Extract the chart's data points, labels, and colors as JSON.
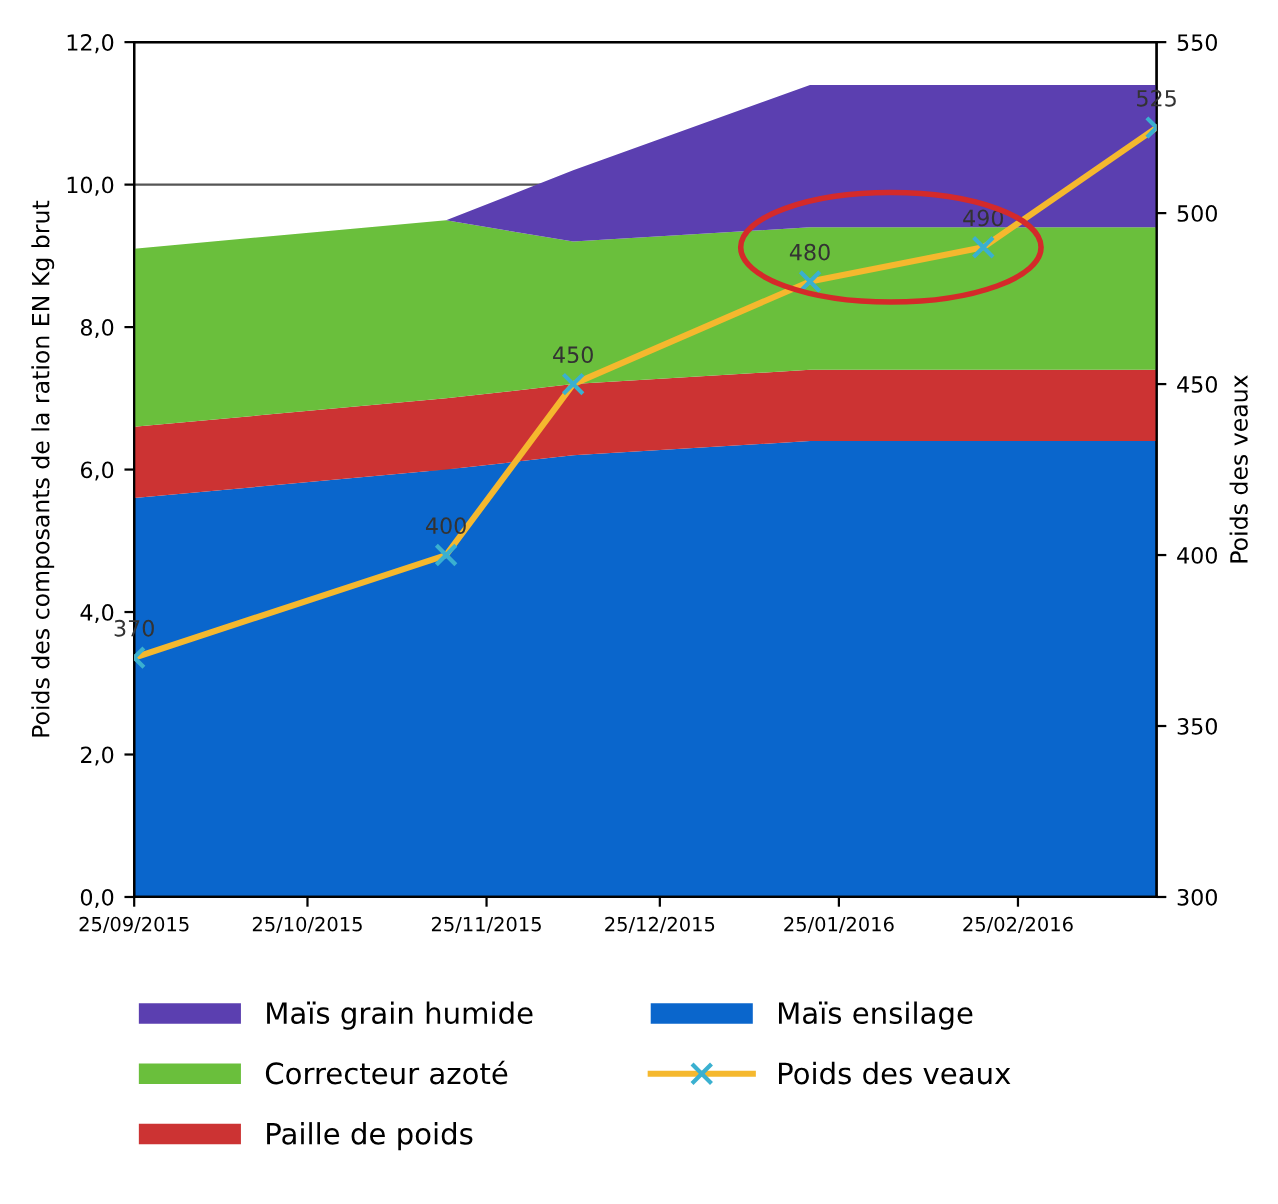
{
  "chart_data": {
    "type": "area",
    "stacked": true,
    "ylabel": "Poids des composants de la ration EN Kg brut",
    "y2label": "Poids des veaux",
    "x": [
      "2015-09-25",
      "2015-11-18",
      "2015-12-10",
      "2016-01-20",
      "2016-02-19",
      "2016-03-20"
    ],
    "series": [
      {
        "name": "Maïs ensilage",
        "color": "#0a66cc",
        "values": [
          5.6,
          6.0,
          6.2,
          6.4,
          6.4,
          6.4
        ]
      },
      {
        "name": "Paille de poids",
        "color": "#cc3333",
        "values": [
          1.0,
          1.0,
          1.0,
          1.0,
          1.0,
          1.0
        ]
      },
      {
        "name": "Correcteur azoté",
        "color": "#6abf3c",
        "values": [
          2.5,
          2.5,
          2.0,
          2.0,
          2.0,
          2.0
        ]
      },
      {
        "name": "Maïs grain humide",
        "color": "#5b3fb0",
        "values": [
          0,
          0,
          1.0,
          2.0,
          2.0,
          2.0
        ]
      },
      {
        "name": "Poids des veaux",
        "type": "line",
        "axis": "y2",
        "color": "#f5b82e",
        "marker": "cross",
        "data_labels": true,
        "values": [
          370,
          400,
          450,
          480,
          490,
          525
        ]
      }
    ],
    "xlim": [
      "2015-09-25",
      "2016-03-20"
    ],
    "xticks": [
      {
        "value": "2015-09-25",
        "label": "25/09/2015"
      },
      {
        "value": "2015-10-25",
        "label": "25/10/2015"
      },
      {
        "value": "2015-11-25",
        "label": "25/11/2015"
      },
      {
        "value": "2015-12-25",
        "label": "25/12/2015"
      },
      {
        "value": "2016-01-25",
        "label": "25/01/2016"
      },
      {
        "value": "2016-02-25",
        "label": "25/02/2016"
      }
    ],
    "ylim": [
      0,
      12
    ],
    "yticks": [
      {
        "value": 0,
        "label": "0,0"
      },
      {
        "value": 2,
        "label": "2,0"
      },
      {
        "value": 4,
        "label": "4,0"
      },
      {
        "value": 6,
        "label": "6,0"
      },
      {
        "value": 8,
        "label": "8,0"
      },
      {
        "value": 10,
        "label": "10,0"
      },
      {
        "value": 12,
        "label": "12,0"
      }
    ],
    "y2lim": [
      300,
      550
    ],
    "y2ticks": [
      300,
      350,
      400,
      450,
      500,
      550
    ],
    "grid": "y",
    "legend": "bottom"
  }
}
